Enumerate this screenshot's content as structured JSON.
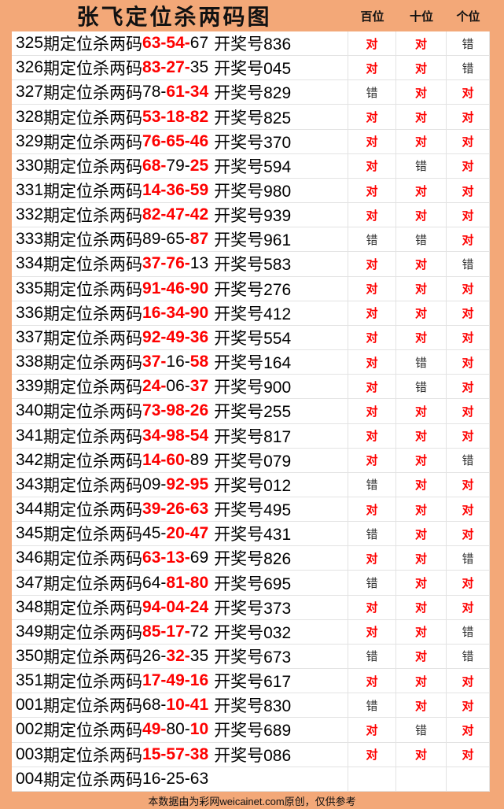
{
  "title": "张飞定位杀两码图",
  "columns": [
    "百位",
    "十位",
    "个位"
  ],
  "labels": {
    "row_label": "期定位杀两码",
    "draw_prefix": "开奖号",
    "correct": "对",
    "wrong": "错"
  },
  "colors": {
    "background_orange": "#f3a878",
    "highlight_red": "#fe0000",
    "cell_background": "#ffffff",
    "grid_border": "#e3e3e3",
    "text_black": "#000000"
  },
  "footer": "本数据由为彩网weicainet.com原创，仅供参考",
  "rows": [
    {
      "period": "325",
      "codes": [
        {
          "v": "63",
          "red": true
        },
        {
          "v": "54",
          "red": true
        },
        {
          "v": "67",
          "red": false
        }
      ],
      "draw": "836",
      "results": [
        "对",
        "对",
        "错"
      ]
    },
    {
      "period": "326",
      "codes": [
        {
          "v": "83",
          "red": true
        },
        {
          "v": "27",
          "red": true
        },
        {
          "v": "35",
          "red": false
        }
      ],
      "draw": "045",
      "results": [
        "对",
        "对",
        "错"
      ]
    },
    {
      "period": "327",
      "codes": [
        {
          "v": "78",
          "red": false
        },
        {
          "v": "61",
          "red": true
        },
        {
          "v": "34",
          "red": true
        }
      ],
      "draw": "829",
      "results": [
        "错",
        "对",
        "对"
      ]
    },
    {
      "period": "328",
      "codes": [
        {
          "v": "53",
          "red": true
        },
        {
          "v": "18",
          "red": true
        },
        {
          "v": "82",
          "red": true
        }
      ],
      "draw": "825",
      "results": [
        "对",
        "对",
        "对"
      ]
    },
    {
      "period": "329",
      "codes": [
        {
          "v": "76",
          "red": true
        },
        {
          "v": "65",
          "red": true
        },
        {
          "v": "46",
          "red": true
        }
      ],
      "draw": "370",
      "results": [
        "对",
        "对",
        "对"
      ]
    },
    {
      "period": "330",
      "codes": [
        {
          "v": "68",
          "red": true
        },
        {
          "v": "79",
          "red": false
        },
        {
          "v": "25",
          "red": true
        }
      ],
      "draw": "594",
      "results": [
        "对",
        "错",
        "对"
      ]
    },
    {
      "period": "331",
      "codes": [
        {
          "v": "14",
          "red": true
        },
        {
          "v": "36",
          "red": true
        },
        {
          "v": "59",
          "red": true
        }
      ],
      "draw": "980",
      "results": [
        "对",
        "对",
        "对"
      ]
    },
    {
      "period": "332",
      "codes": [
        {
          "v": "82",
          "red": true
        },
        {
          "v": "47",
          "red": true
        },
        {
          "v": "42",
          "red": true
        }
      ],
      "draw": "939",
      "results": [
        "对",
        "对",
        "对"
      ]
    },
    {
      "period": "333",
      "codes": [
        {
          "v": "89",
          "red": false
        },
        {
          "v": "65",
          "red": false
        },
        {
          "v": "87",
          "red": true
        }
      ],
      "draw": "961",
      "results": [
        "错",
        "错",
        "对"
      ]
    },
    {
      "period": "334",
      "codes": [
        {
          "v": "37",
          "red": true
        },
        {
          "v": "76",
          "red": true
        },
        {
          "v": "13",
          "red": false
        }
      ],
      "draw": "583",
      "results": [
        "对",
        "对",
        "错"
      ]
    },
    {
      "period": "335",
      "codes": [
        {
          "v": "91",
          "red": true
        },
        {
          "v": "46",
          "red": true
        },
        {
          "v": "90",
          "red": true
        }
      ],
      "draw": "276",
      "results": [
        "对",
        "对",
        "对"
      ]
    },
    {
      "period": "336",
      "codes": [
        {
          "v": "16",
          "red": true
        },
        {
          "v": "34",
          "red": true
        },
        {
          "v": "90",
          "red": true
        }
      ],
      "draw": "412",
      "results": [
        "对",
        "对",
        "对"
      ]
    },
    {
      "period": "337",
      "codes": [
        {
          "v": "92",
          "red": true
        },
        {
          "v": "49",
          "red": true
        },
        {
          "v": "36",
          "red": true
        }
      ],
      "draw": "554",
      "results": [
        "对",
        "对",
        "对"
      ]
    },
    {
      "period": "338",
      "codes": [
        {
          "v": "37",
          "red": true
        },
        {
          "v": "16",
          "red": false
        },
        {
          "v": "58",
          "red": true
        }
      ],
      "draw": "164",
      "results": [
        "对",
        "错",
        "对"
      ]
    },
    {
      "period": "339",
      "codes": [
        {
          "v": "24",
          "red": true
        },
        {
          "v": "06",
          "red": false
        },
        {
          "v": "37",
          "red": true
        }
      ],
      "draw": "900",
      "results": [
        "对",
        "错",
        "对"
      ]
    },
    {
      "period": "340",
      "codes": [
        {
          "v": "73",
          "red": true
        },
        {
          "v": "98",
          "red": true
        },
        {
          "v": "26",
          "red": true
        }
      ],
      "draw": "255",
      "results": [
        "对",
        "对",
        "对"
      ]
    },
    {
      "period": "341",
      "codes": [
        {
          "v": "34",
          "red": true
        },
        {
          "v": "98",
          "red": true
        },
        {
          "v": "54",
          "red": true
        }
      ],
      "draw": "817",
      "results": [
        "对",
        "对",
        "对"
      ]
    },
    {
      "period": "342",
      "codes": [
        {
          "v": "14",
          "red": true
        },
        {
          "v": "60",
          "red": true
        },
        {
          "v": "89",
          "red": false
        }
      ],
      "draw": "079",
      "results": [
        "对",
        "对",
        "错"
      ]
    },
    {
      "period": "343",
      "codes": [
        {
          "v": "09",
          "red": false
        },
        {
          "v": "92",
          "red": true
        },
        {
          "v": "95",
          "red": true
        }
      ],
      "draw": "012",
      "results": [
        "错",
        "对",
        "对"
      ]
    },
    {
      "period": "344",
      "codes": [
        {
          "v": "39",
          "red": true
        },
        {
          "v": "26",
          "red": true
        },
        {
          "v": "63",
          "red": true
        }
      ],
      "draw": "495",
      "results": [
        "对",
        "对",
        "对"
      ]
    },
    {
      "period": "345",
      "codes": [
        {
          "v": "45",
          "red": false
        },
        {
          "v": "20",
          "red": true
        },
        {
          "v": "47",
          "red": true
        }
      ],
      "draw": "431",
      "results": [
        "错",
        "对",
        "对"
      ]
    },
    {
      "period": "346",
      "codes": [
        {
          "v": "63",
          "red": true
        },
        {
          "v": "13",
          "red": true
        },
        {
          "v": "69",
          "red": false
        }
      ],
      "draw": "826",
      "results": [
        "对",
        "对",
        "错"
      ]
    },
    {
      "period": "347",
      "codes": [
        {
          "v": "64",
          "red": false
        },
        {
          "v": "81",
          "red": true
        },
        {
          "v": "80",
          "red": true
        }
      ],
      "draw": "695",
      "results": [
        "错",
        "对",
        "对"
      ]
    },
    {
      "period": "348",
      "codes": [
        {
          "v": "94",
          "red": true
        },
        {
          "v": "04",
          "red": true
        },
        {
          "v": "24",
          "red": true
        }
      ],
      "draw": "373",
      "results": [
        "对",
        "对",
        "对"
      ]
    },
    {
      "period": "349",
      "codes": [
        {
          "v": "85",
          "red": true
        },
        {
          "v": "17",
          "red": true
        },
        {
          "v": "72",
          "red": false
        }
      ],
      "draw": "032",
      "results": [
        "对",
        "对",
        "错"
      ]
    },
    {
      "period": "350",
      "codes": [
        {
          "v": "26",
          "red": false
        },
        {
          "v": "32",
          "red": true
        },
        {
          "v": "35",
          "red": false
        }
      ],
      "draw": "673",
      "results": [
        "错",
        "对",
        "错"
      ]
    },
    {
      "period": "351",
      "codes": [
        {
          "v": "17",
          "red": true
        },
        {
          "v": "49",
          "red": true
        },
        {
          "v": "16",
          "red": true
        }
      ],
      "draw": "617",
      "results": [
        "对",
        "对",
        "对"
      ]
    },
    {
      "period": "001",
      "codes": [
        {
          "v": "68",
          "red": false
        },
        {
          "v": "10",
          "red": true
        },
        {
          "v": "41",
          "red": true
        }
      ],
      "draw": "830",
      "results": [
        "错",
        "对",
        "对"
      ]
    },
    {
      "period": "002",
      "codes": [
        {
          "v": "49",
          "red": true
        },
        {
          "v": "80",
          "red": false
        },
        {
          "v": "10",
          "red": true
        }
      ],
      "draw": "689",
      "results": [
        "对",
        "错",
        "对"
      ]
    },
    {
      "period": "003",
      "codes": [
        {
          "v": "15",
          "red": true
        },
        {
          "v": "57",
          "red": true
        },
        {
          "v": "38",
          "red": true
        }
      ],
      "draw": "086",
      "results": [
        "对",
        "对",
        "对"
      ]
    },
    {
      "period": "004",
      "codes": [
        {
          "v": "16",
          "red": false
        },
        {
          "v": "25",
          "red": false
        },
        {
          "v": "63",
          "red": false
        }
      ],
      "draw": "",
      "results": [
        "",
        "",
        ""
      ]
    }
  ]
}
